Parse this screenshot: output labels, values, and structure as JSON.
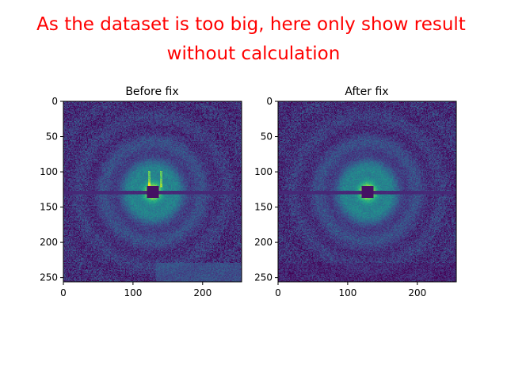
{
  "figure": {
    "title_line1": "As the dataset is too big, here only show result",
    "title_line2": "without calculation",
    "title_color": "#ff0000"
  },
  "colormap": "viridis",
  "chart_data": [
    {
      "type": "heatmap",
      "title": "Before fix",
      "xlabel": "",
      "ylabel": "",
      "xlim": [
        0,
        256
      ],
      "ylim": [
        256,
        0
      ],
      "xticks": [
        "0",
        "100",
        "200"
      ],
      "yticks": [
        "0",
        "50",
        "100",
        "150",
        "200",
        "250"
      ],
      "beam_center": [
        128,
        128
      ],
      "beam_stop_half_size": 8,
      "horizontal_gap_rows": [
        127,
        131
      ],
      "ring_period": 36,
      "artifacts": [
        "bright vertical streaks above beam stop",
        "detector panel offset lower-right region"
      ]
    },
    {
      "type": "heatmap",
      "title": "After fix",
      "xlabel": "",
      "ylabel": "",
      "xlim": [
        0,
        256
      ],
      "ylim": [
        256,
        0
      ],
      "xticks": [
        "0",
        "100",
        "200"
      ],
      "yticks": [
        "0",
        "50",
        "100",
        "150",
        "200",
        "250"
      ],
      "beam_center": [
        128,
        128
      ],
      "beam_stop_half_size": 8,
      "horizontal_gap_rows": [
        127,
        131
      ],
      "ring_period": 36,
      "artifacts": []
    }
  ]
}
